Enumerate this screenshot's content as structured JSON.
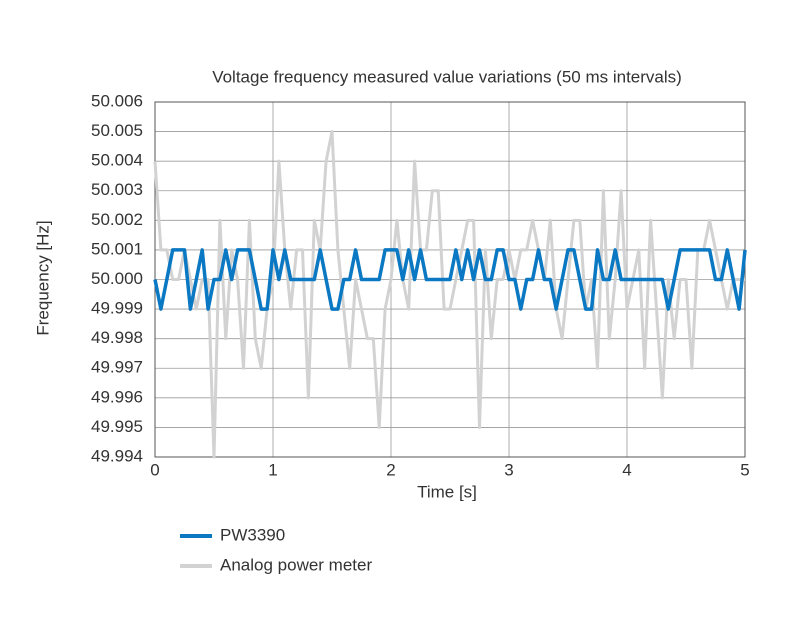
{
  "chart_data": {
    "type": "line",
    "title": "Voltage frequency measured value variations (50 ms intervals)",
    "x_label": "Time [s]",
    "y_label": "Frequency [Hz]",
    "xlim": [
      0,
      5
    ],
    "xticks": [
      0,
      1,
      2,
      3,
      4,
      5
    ],
    "ylim": [
      49.994,
      50.006
    ],
    "yticks": [
      50.006,
      50.005,
      50.004,
      50.003,
      50.002,
      50.001,
      {
        "value": 50.0,
        "label": "50.000"
      },
      49.999,
      49.998,
      49.997,
      49.996,
      49.995,
      49.994
    ],
    "grid": true,
    "x": [
      0,
      0.05,
      0.1,
      0.15,
      0.2,
      0.25,
      0.3,
      0.35,
      0.4,
      0.45,
      0.5,
      0.55,
      0.6,
      0.65,
      0.7,
      0.75,
      0.8,
      0.85,
      0.9,
      0.95,
      1,
      1.05,
      1.1,
      1.15,
      1.2,
      1.25,
      1.3,
      1.35,
      1.4,
      1.45,
      1.5,
      1.55,
      1.6,
      1.65,
      1.7,
      1.75,
      1.8,
      1.85,
      1.9,
      1.95,
      2,
      2.05,
      2.1,
      2.15,
      2.2,
      2.25,
      2.3,
      2.35,
      2.4,
      2.45,
      2.5,
      2.55,
      2.6,
      2.65,
      2.7,
      2.75,
      2.8,
      2.85,
      2.9,
      2.95,
      3,
      3.05,
      3.1,
      3.15,
      3.2,
      3.25,
      3.3,
      3.35,
      3.4,
      3.45,
      3.5,
      3.55,
      3.6,
      3.65,
      3.7,
      3.75,
      3.8,
      3.85,
      3.9,
      3.95,
      4,
      4.05,
      4.1,
      4.15,
      4.2,
      4.25,
      4.3,
      4.35,
      4.4,
      4.45,
      4.5,
      4.55,
      4.6,
      4.65,
      4.7,
      4.75,
      4.8,
      4.85,
      4.9,
      4.95,
      5
    ],
    "series": [
      {
        "name": "Analog power meter",
        "color": "#d2d2d2",
        "values": [
          50.004,
          50.001,
          50.001,
          50.0,
          50.0,
          50.001,
          50.0,
          49.999,
          50.0,
          50.0,
          49.994,
          50.002,
          49.998,
          50.001,
          50.0,
          49.997,
          50.002,
          49.998,
          49.997,
          49.999,
          50.0,
          50.004,
          50.001,
          49.999,
          50.001,
          50.001,
          49.996,
          50.002,
          50.001,
          50.004,
          50.005,
          50.001,
          49.999,
          49.997,
          50.0,
          49.999,
          49.998,
          49.998,
          49.995,
          49.999,
          50.0,
          50.002,
          50.0,
          49.999,
          50.004,
          50.001,
          50.001,
          50.003,
          50.003,
          49.999,
          49.999,
          50.0,
          50.001,
          50.002,
          50.002,
          49.995,
          50.001,
          49.998,
          50.0,
          50.0,
          50.001,
          50.0,
          50.001,
          50.001,
          50.002,
          50.001,
          50.0,
          50.002,
          49.999,
          49.998,
          50.0,
          50.002,
          50.002,
          49.999,
          50.0,
          49.997,
          50.003,
          49.998,
          50.0,
          50.003,
          49.999,
          50.0,
          50.001,
          49.997,
          50.002,
          49.999,
          49.996,
          50.0,
          49.998,
          50.0,
          50.0,
          49.997,
          50.001,
          50.001,
          50.002,
          50.001,
          50.0,
          49.999,
          50.0,
          50.0,
          50.0
        ]
      },
      {
        "name": "PW3390",
        "color": "#0a78c2",
        "values": [
          50.0,
          49.999,
          50.0,
          50.001,
          50.001,
          50.001,
          49.999,
          50.0,
          50.001,
          49.999,
          50.0,
          50.0,
          50.001,
          50.0,
          50.001,
          50.001,
          50.001,
          50.0,
          49.999,
          49.999,
          50.001,
          50.0,
          50.001,
          50.0,
          50.0,
          50.0,
          50.0,
          50.0,
          50.001,
          50.0,
          49.999,
          49.999,
          50.0,
          50.0,
          50.001,
          50.0,
          50.0,
          50.0,
          50.0,
          50.001,
          50.001,
          50.001,
          50.0,
          50.001,
          50.0,
          50.001,
          50.0,
          50.0,
          50.0,
          50.0,
          50.0,
          50.001,
          50.0,
          50.001,
          50.0,
          50.001,
          50.0,
          50.0,
          50.001,
          50.001,
          50.0,
          50.0,
          49.999,
          50.0,
          50.0,
          50.001,
          50.0,
          50.0,
          49.999,
          50.0,
          50.001,
          50.001,
          50.0,
          49.999,
          49.999,
          50.001,
          50.0,
          50.0,
          50.001,
          50.0,
          50.0,
          50.0,
          50.0,
          50.0,
          50.0,
          50.0,
          50.0,
          49.999,
          50.0,
          50.001,
          50.001,
          50.001,
          50.001,
          50.001,
          50.001,
          50.0,
          50.0,
          50.001,
          50.0,
          49.999,
          50.001
        ]
      }
    ]
  }
}
